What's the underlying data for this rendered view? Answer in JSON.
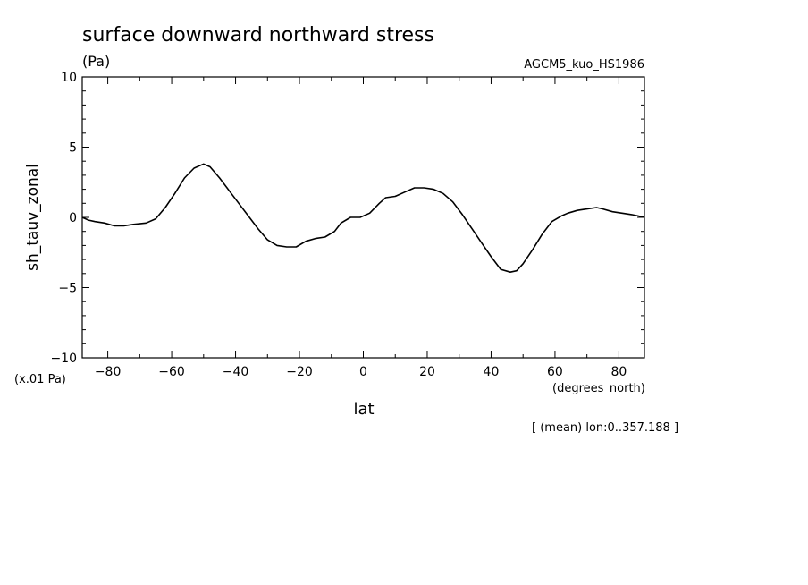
{
  "chart_data": {
    "type": "line",
    "title": "surface downward northward stress",
    "units": "(Pa)",
    "model_label": "AGCM5_kuo_HS1986",
    "ylabel": "sh_tauv_zonal",
    "y_scale_note": "(x.01 Pa)",
    "xlabel": "lat",
    "x_units": "(degrees_north)",
    "footnote": "[ (mean) lon:0..357.188 ]",
    "xlim": [
      -88,
      88
    ],
    "ylim": [
      -10,
      10
    ],
    "x_ticks": [
      -80,
      -60,
      -40,
      -20,
      0,
      20,
      40,
      60,
      80
    ],
    "y_ticks": [
      -10,
      -5,
      0,
      5,
      10
    ],
    "series": [
      {
        "x": [
          -88,
          -86,
          -84,
          -81,
          -78,
          -75,
          -72,
          -68,
          -65,
          -62,
          -59,
          -56,
          -53,
          -50,
          -48,
          -45,
          -42,
          -39,
          -36,
          -33,
          -30,
          -27,
          -24,
          -21,
          -18,
          -15,
          -12,
          -9,
          -7,
          -4,
          -1,
          2,
          5,
          7,
          10,
          13,
          16,
          19,
          22,
          25,
          28,
          31,
          34,
          37,
          40,
          43,
          46,
          48,
          50,
          53,
          56,
          59,
          62,
          64,
          67,
          70,
          73,
          75,
          78,
          81,
          84,
          86,
          88
        ],
        "y": [
          0.0,
          -0.2,
          -0.3,
          -0.4,
          -0.6,
          -0.6,
          -0.5,
          -0.4,
          -0.1,
          0.7,
          1.7,
          2.8,
          3.5,
          3.8,
          3.6,
          2.8,
          1.9,
          1.0,
          0.1,
          -0.8,
          -1.6,
          -2.0,
          -2.1,
          -2.1,
          -1.7,
          -1.5,
          -1.4,
          -1.0,
          -0.4,
          0.0,
          0.0,
          0.3,
          1.0,
          1.4,
          1.5,
          1.8,
          2.1,
          2.1,
          2.0,
          1.7,
          1.1,
          0.2,
          -0.8,
          -1.8,
          -2.8,
          -3.7,
          -3.9,
          -3.8,
          -3.3,
          -2.3,
          -1.2,
          -0.3,
          0.1,
          0.3,
          0.5,
          0.6,
          0.7,
          0.6,
          0.4,
          0.3,
          0.2,
          0.1,
          0.0
        ]
      }
    ]
  }
}
